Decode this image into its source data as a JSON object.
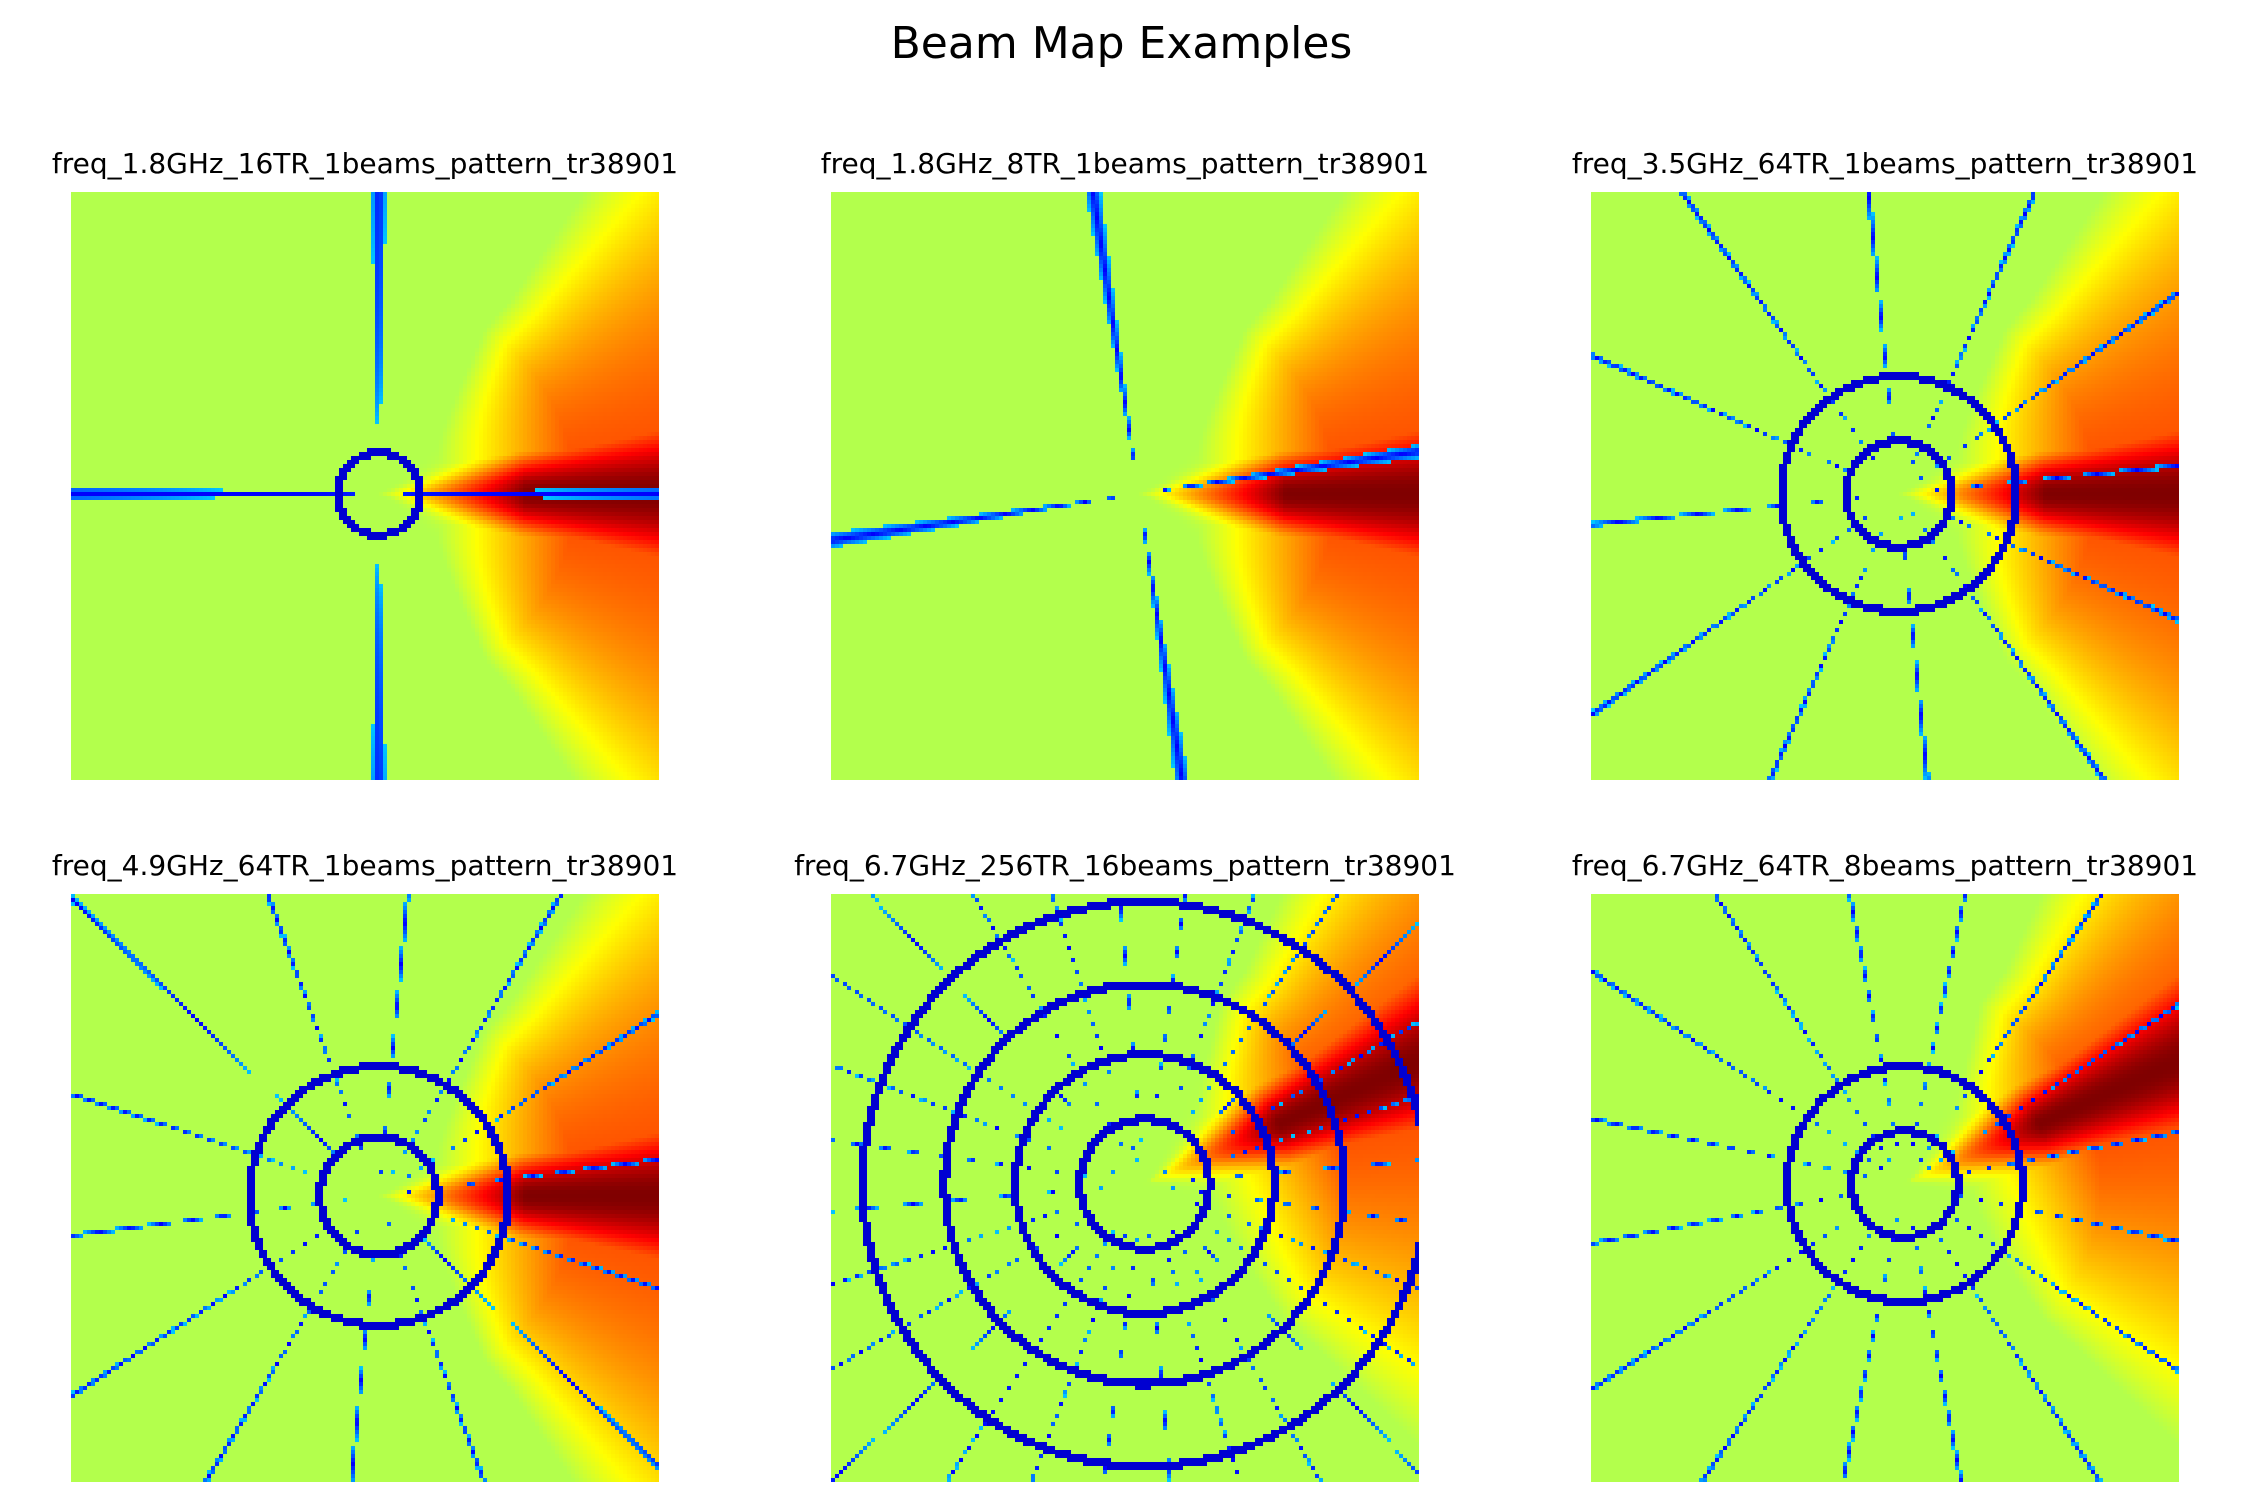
{
  "figure": {
    "title": "Beam Map Examples"
  },
  "chart_data": [
    {
      "type": "heatmap",
      "title": "freq_1.8GHz_16TR_1beams_pattern_tr38901",
      "colormap": "jet",
      "grid": false,
      "axes": "off",
      "frequency_ghz": 1.8,
      "trx": 16,
      "beams": 1,
      "ring_radii": [
        0.07
      ],
      "spoke_count": 4,
      "main_lobe": "right"
    },
    {
      "type": "heatmap",
      "title": "freq_1.8GHz_8TR_1beams_pattern_tr38901",
      "colormap": "jet",
      "grid": false,
      "axes": "off",
      "frequency_ghz": 1.8,
      "trx": 8,
      "beams": 1,
      "ring_radii": [],
      "spoke_count": 4,
      "main_lobe": "right"
    },
    {
      "type": "heatmap",
      "title": "freq_3.5GHz_64TR_1beams_pattern_tr38901",
      "colormap": "jet",
      "grid": false,
      "axes": "off",
      "frequency_ghz": 3.5,
      "trx": 64,
      "beams": 1,
      "ring_radii": [
        0.2,
        0.09
      ],
      "spoke_count": 12,
      "main_lobe": "right"
    },
    {
      "type": "heatmap",
      "title": "freq_4.9GHz_64TR_1beams_pattern_tr38901",
      "colormap": "jet",
      "grid": false,
      "axes": "off",
      "frequency_ghz": 4.9,
      "trx": 64,
      "beams": 1,
      "ring_radii": [
        0.22,
        0.1
      ],
      "spoke_count": 14,
      "main_lobe": "right"
    },
    {
      "type": "heatmap",
      "title": "freq_6.7GHz_256TR_16beams_pattern_tr38901",
      "colormap": "jet",
      "grid": false,
      "axes": "off",
      "frequency_ghz": 6.7,
      "trx": 256,
      "beams": 16,
      "ring_radii": [
        0.48,
        0.34,
        0.22,
        0.11
      ],
      "spoke_count": 28,
      "main_lobe": "upper-right"
    },
    {
      "type": "heatmap",
      "title": "freq_6.7GHz_64TR_8beams_pattern_tr38901",
      "colormap": "jet",
      "grid": false,
      "axes": "off",
      "frequency_ghz": 6.7,
      "trx": 64,
      "beams": 8,
      "ring_radii": [
        0.2,
        0.09
      ],
      "spoke_count": 16,
      "main_lobe": "upper-right"
    }
  ]
}
